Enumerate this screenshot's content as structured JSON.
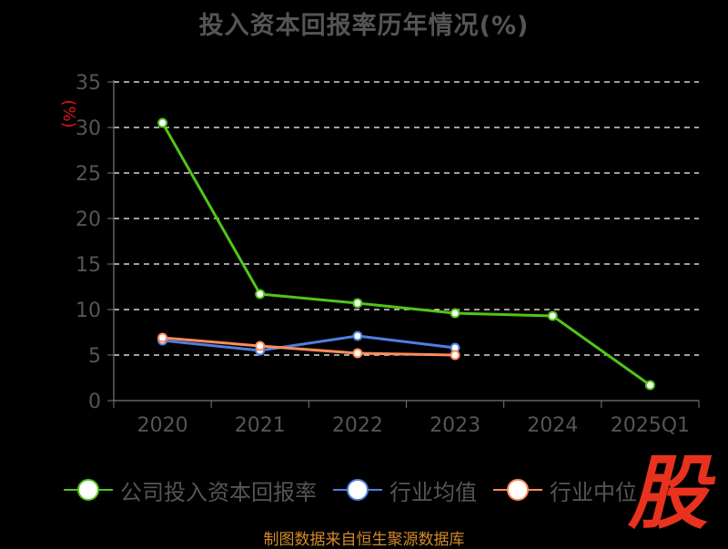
{
  "title": "投入资本回报率历年情况(%)",
  "source": "制图数据来自恒生聚源数据库",
  "stamp": "股",
  "chart_data": {
    "type": "line",
    "title": "投入资本回报率历年情况(%)",
    "ylabel": "(%)",
    "xlabel": "",
    "ylim": [
      0,
      35
    ],
    "yticks": [
      "0",
      "5",
      "10",
      "15",
      "20",
      "25",
      "30",
      "35"
    ],
    "categories": [
      "2020",
      "2021",
      "2022",
      "2023",
      "2024",
      "2025Q1"
    ],
    "grid": true,
    "legend_position": "bottom",
    "series": [
      {
        "name": "公司投入资本回报率",
        "color": "#52c41a",
        "values": [
          30.5,
          11.7,
          10.7,
          9.6,
          9.3,
          1.7
        ]
      },
      {
        "name": "行业均值",
        "color": "#4d7fe0",
        "values": [
          6.6,
          5.5,
          7.1,
          5.8,
          null,
          null
        ]
      },
      {
        "name": "行业中位",
        "color": "#ff8c5a",
        "values": [
          6.9,
          6.0,
          5.2,
          5.0,
          null,
          null
        ]
      }
    ]
  }
}
